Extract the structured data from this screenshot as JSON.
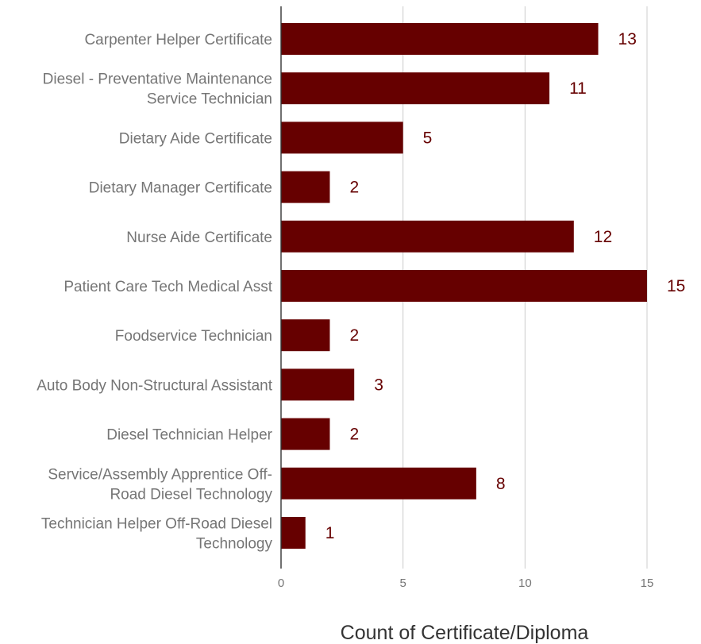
{
  "chart_data": {
    "type": "bar",
    "orientation": "horizontal",
    "categories": [
      "Carpenter Helper Certificate",
      "Diesel - Preventative Maintenance Service Technician",
      "Dietary Aide Certificate",
      "Dietary Manager Certificate",
      "Nurse Aide Certificate",
      "Patient Care Tech Medical Asst",
      "Foodservice Technician",
      "Auto Body Non-Structural Assistant",
      "Diesel Technician Helper",
      "Service/Assembly Apprentice Off-Road Diesel Technology",
      "Technician Helper Off-Road Diesel Technology"
    ],
    "category_label_lines": [
      [
        "Carpenter Helper Certificate"
      ],
      [
        "Diesel - Preventative Maintenance",
        "Service Technician"
      ],
      [
        "Dietary Aide Certificate"
      ],
      [
        "Dietary Manager Certificate"
      ],
      [
        "Nurse Aide Certificate"
      ],
      [
        "Patient Care Tech Medical Asst"
      ],
      [
        "Foodservice Technician"
      ],
      [
        "Auto Body Non-Structural Assistant"
      ],
      [
        "Diesel Technician Helper"
      ],
      [
        "Service/Assembly Apprentice Off-",
        "Road Diesel Technology"
      ],
      [
        "Technician Helper Off-Road Diesel",
        "Technology"
      ]
    ],
    "values": [
      13,
      11,
      5,
      2,
      12,
      15,
      2,
      3,
      2,
      8,
      1
    ],
    "xlabel": "Count of Certificate/Diploma",
    "xlim": [
      0,
      15
    ],
    "xticks": [
      0,
      5,
      10,
      15
    ],
    "grid": true,
    "data_labels": true,
    "bar_color": "#660000",
    "label_color": "#660000"
  }
}
